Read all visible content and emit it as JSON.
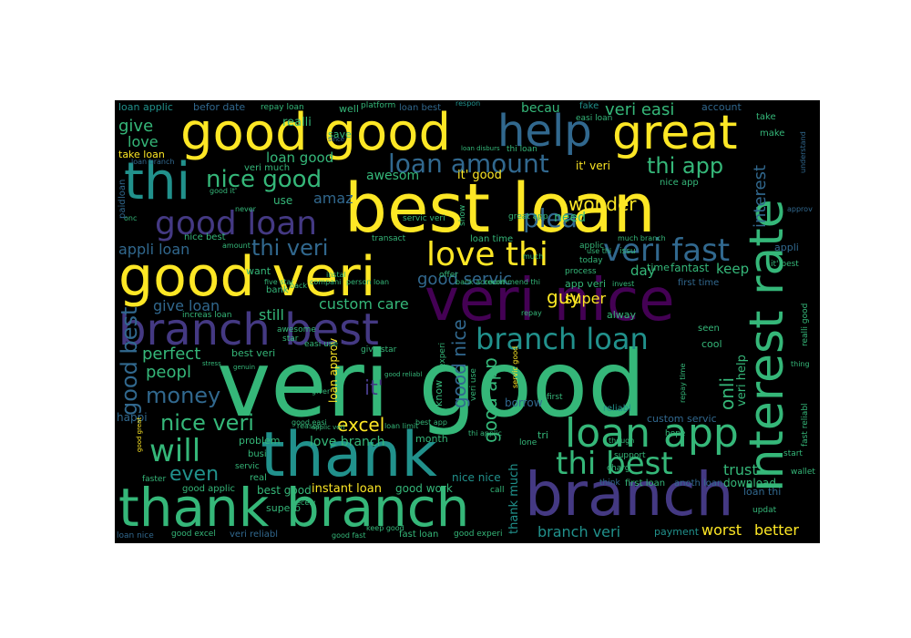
{
  "colors": {
    "background": "#000000",
    "page": "#ffffff",
    "yellow": "#fde725",
    "green": "#35b779",
    "teal": "#21918c",
    "blue": "#31688e",
    "indigo": "#443983",
    "purple": "#440154"
  },
  "words": {
    "best_loan": "best loan",
    "veri_good": "veri good",
    "veri_nice": "veri nice",
    "interest_rate": "interest rate",
    "good_good": "good good",
    "good": "good",
    "great": "great",
    "help": "help",
    "thi": "thi",
    "good_veri": "good veri",
    "branch_best": "branch best",
    "thank": "thank",
    "thank_branch": "thank branch",
    "branch": "branch",
    "loan_app": "loan app",
    "thi_best": "thi best",
    "branch_loan": "branch loan",
    "love_thi": "love thi",
    "veri_fast": "veri fast",
    "good_loan": "good loan",
    "thi_veri": "thi veri",
    "loan_amount": "loan amount",
    "thi_app": "thi app",
    "nice_good": "nice good",
    "veri_easi": "veri easi",
    "good_best": "good best",
    "will": "will",
    "nice_veri": "nice veri",
    "money": "money",
    "excel": "excel",
    "even": "even",
    "custom_care": "custom care",
    "good_servic": "good servic",
    "give_loan": "give loan",
    "perfect": "perfect",
    "peopl": "peopl",
    "plea": "plea",
    "wonder": "wonder",
    "appli_loan": "appli loan",
    "give": "give",
    "love": "love",
    "loan_applic": "loan applic",
    "befor_date": "befor date",
    "repay_loan": "repay loan",
    "well": "well",
    "platform": "platform",
    "loan_best": "loan best",
    "respon": "respon",
    "becau": "becau",
    "fake": "fake",
    "account": "account",
    "easi_loan": "easi loan",
    "take": "take",
    "make": "make",
    "realli": "realli",
    "save": "save",
    "take_loan": "take loan",
    "veri_much": "veri much",
    "loan_good": "loan good",
    "awesom": "awesom",
    "amaz": "amaz",
    "use": "use",
    "need": "need",
    "interest": "interest",
    "keep": "keep",
    "day": "day",
    "super": "super",
    "guy": "guy",
    "still": "still",
    "onli": "onli",
    "trust": "trust",
    "download": "download",
    "worst": "worst",
    "better": "better",
    "payment": "payment",
    "branch_veri": "branch veri",
    "fast_loan": "fast loan",
    "good_experi": "good experi",
    "veri_reliabl": "veri reliabl",
    "good_excel": "good excel",
    "loan_nice": "loan nice",
    "superb": "superb",
    "best_good": "best good",
    "instant_loan": "instant loan",
    "good_work": "good work",
    "good_applic": "good applic",
    "love_branch": "love branch",
    "month": "month",
    "nice_nice": "nice nice",
    "thank_much": "thank much",
    "good_app": "good app",
    "good_nice": "good nice",
    "it": "it'",
    "it_good": "it' good",
    "loan_approv": "loan approv",
    "best_veri": "best veri",
    "happi": "happi",
    "problem": "problem",
    "busi": "busi",
    "real": "real",
    "faster": "faster",
    "servic": "servic",
    "custom_servic": "custom servic",
    "reliabl": "reliabl",
    "tri": "tri",
    "first_loan": "first loan",
    "anoth_loan": "anoth loan",
    "think": "think",
    "support": "support",
    "charg": "charg",
    "hope": "hope",
    "call": "call",
    "updat": "updat",
    "loan_thi": "loan thi",
    "start": "start",
    "wallet": "wallet",
    "want": "want",
    "bank": "bank",
    "fantast": "fantast",
    "time": "time",
    "first_time": "first time",
    "app_veri": "app veri",
    "alway": "alway",
    "seen": "seen",
    "cool": "cool",
    "veri_help": "veri help",
    "fast_reliabl": "fast reliabl",
    "realli_good": "realli good",
    "appli": "appli",
    "it_best": "it' best",
    "approv": "approv",
    "understand": "understand",
    "nice_app": "nice app",
    "much_branch": "much branch",
    "issu": "issu",
    "process": "process",
    "today": "today",
    "applic": "applic",
    "loan_time": "loan time",
    "transact": "transact",
    "great_app": "great app",
    "servic_veri": "servic veri",
    "show": "show",
    "offer": "offer",
    "bank_account": "bank account",
    "recommend_thi": "recommend thi",
    "it_veri": "it' veri",
    "thi_loan": "thi loan",
    "loan_disburs": "loan disburs",
    "person_loan": "person loan",
    "five_star": "five star",
    "instal": "instal",
    "companie": "compani",
    "increas_loan": "increas loan",
    "repay": "repay",
    "awesome": "awesome",
    "star": "star",
    "give_star": "give star",
    "easi_use": "easi use",
    "experi": "experi",
    "know": "know",
    "borrow": "borrow",
    "veri_use": "veri use",
    "servic_good": "servic good",
    "lone": "lone",
    "first": "first",
    "repay_time": "repay time",
    "thing": "thing",
    "excel_good": "excel good",
    "good_easi": "good easi",
    "thi_applic": "thi applic",
    "best_app": "best app",
    "keep_good": "keep good",
    "receiv": "receiv",
    "nice_best": "nice best",
    "amount": "amount",
    "back": "back",
    "onc": "onc",
    "paid": "paid",
    "never": "never",
    "good_it": "good it'",
    "loan": "loan",
    "instal2": "instal",
    "reason": "reason",
    "giver": "giver",
    "since": "since",
    "genuin": "genuin",
    "stress": "stress",
    "good_great": "good great",
    "loan_branch": "loan branch",
    "though": "though",
    "loan_limit": "loan limit",
    "applic_veri": "applic veri",
    "good_fast": "good fast",
    "invest": "invest",
    "use_thi": "use thi",
    "good_reliabl": "good reliabl",
    "reliabl2": "reliabl",
    "much": "much"
  }
}
